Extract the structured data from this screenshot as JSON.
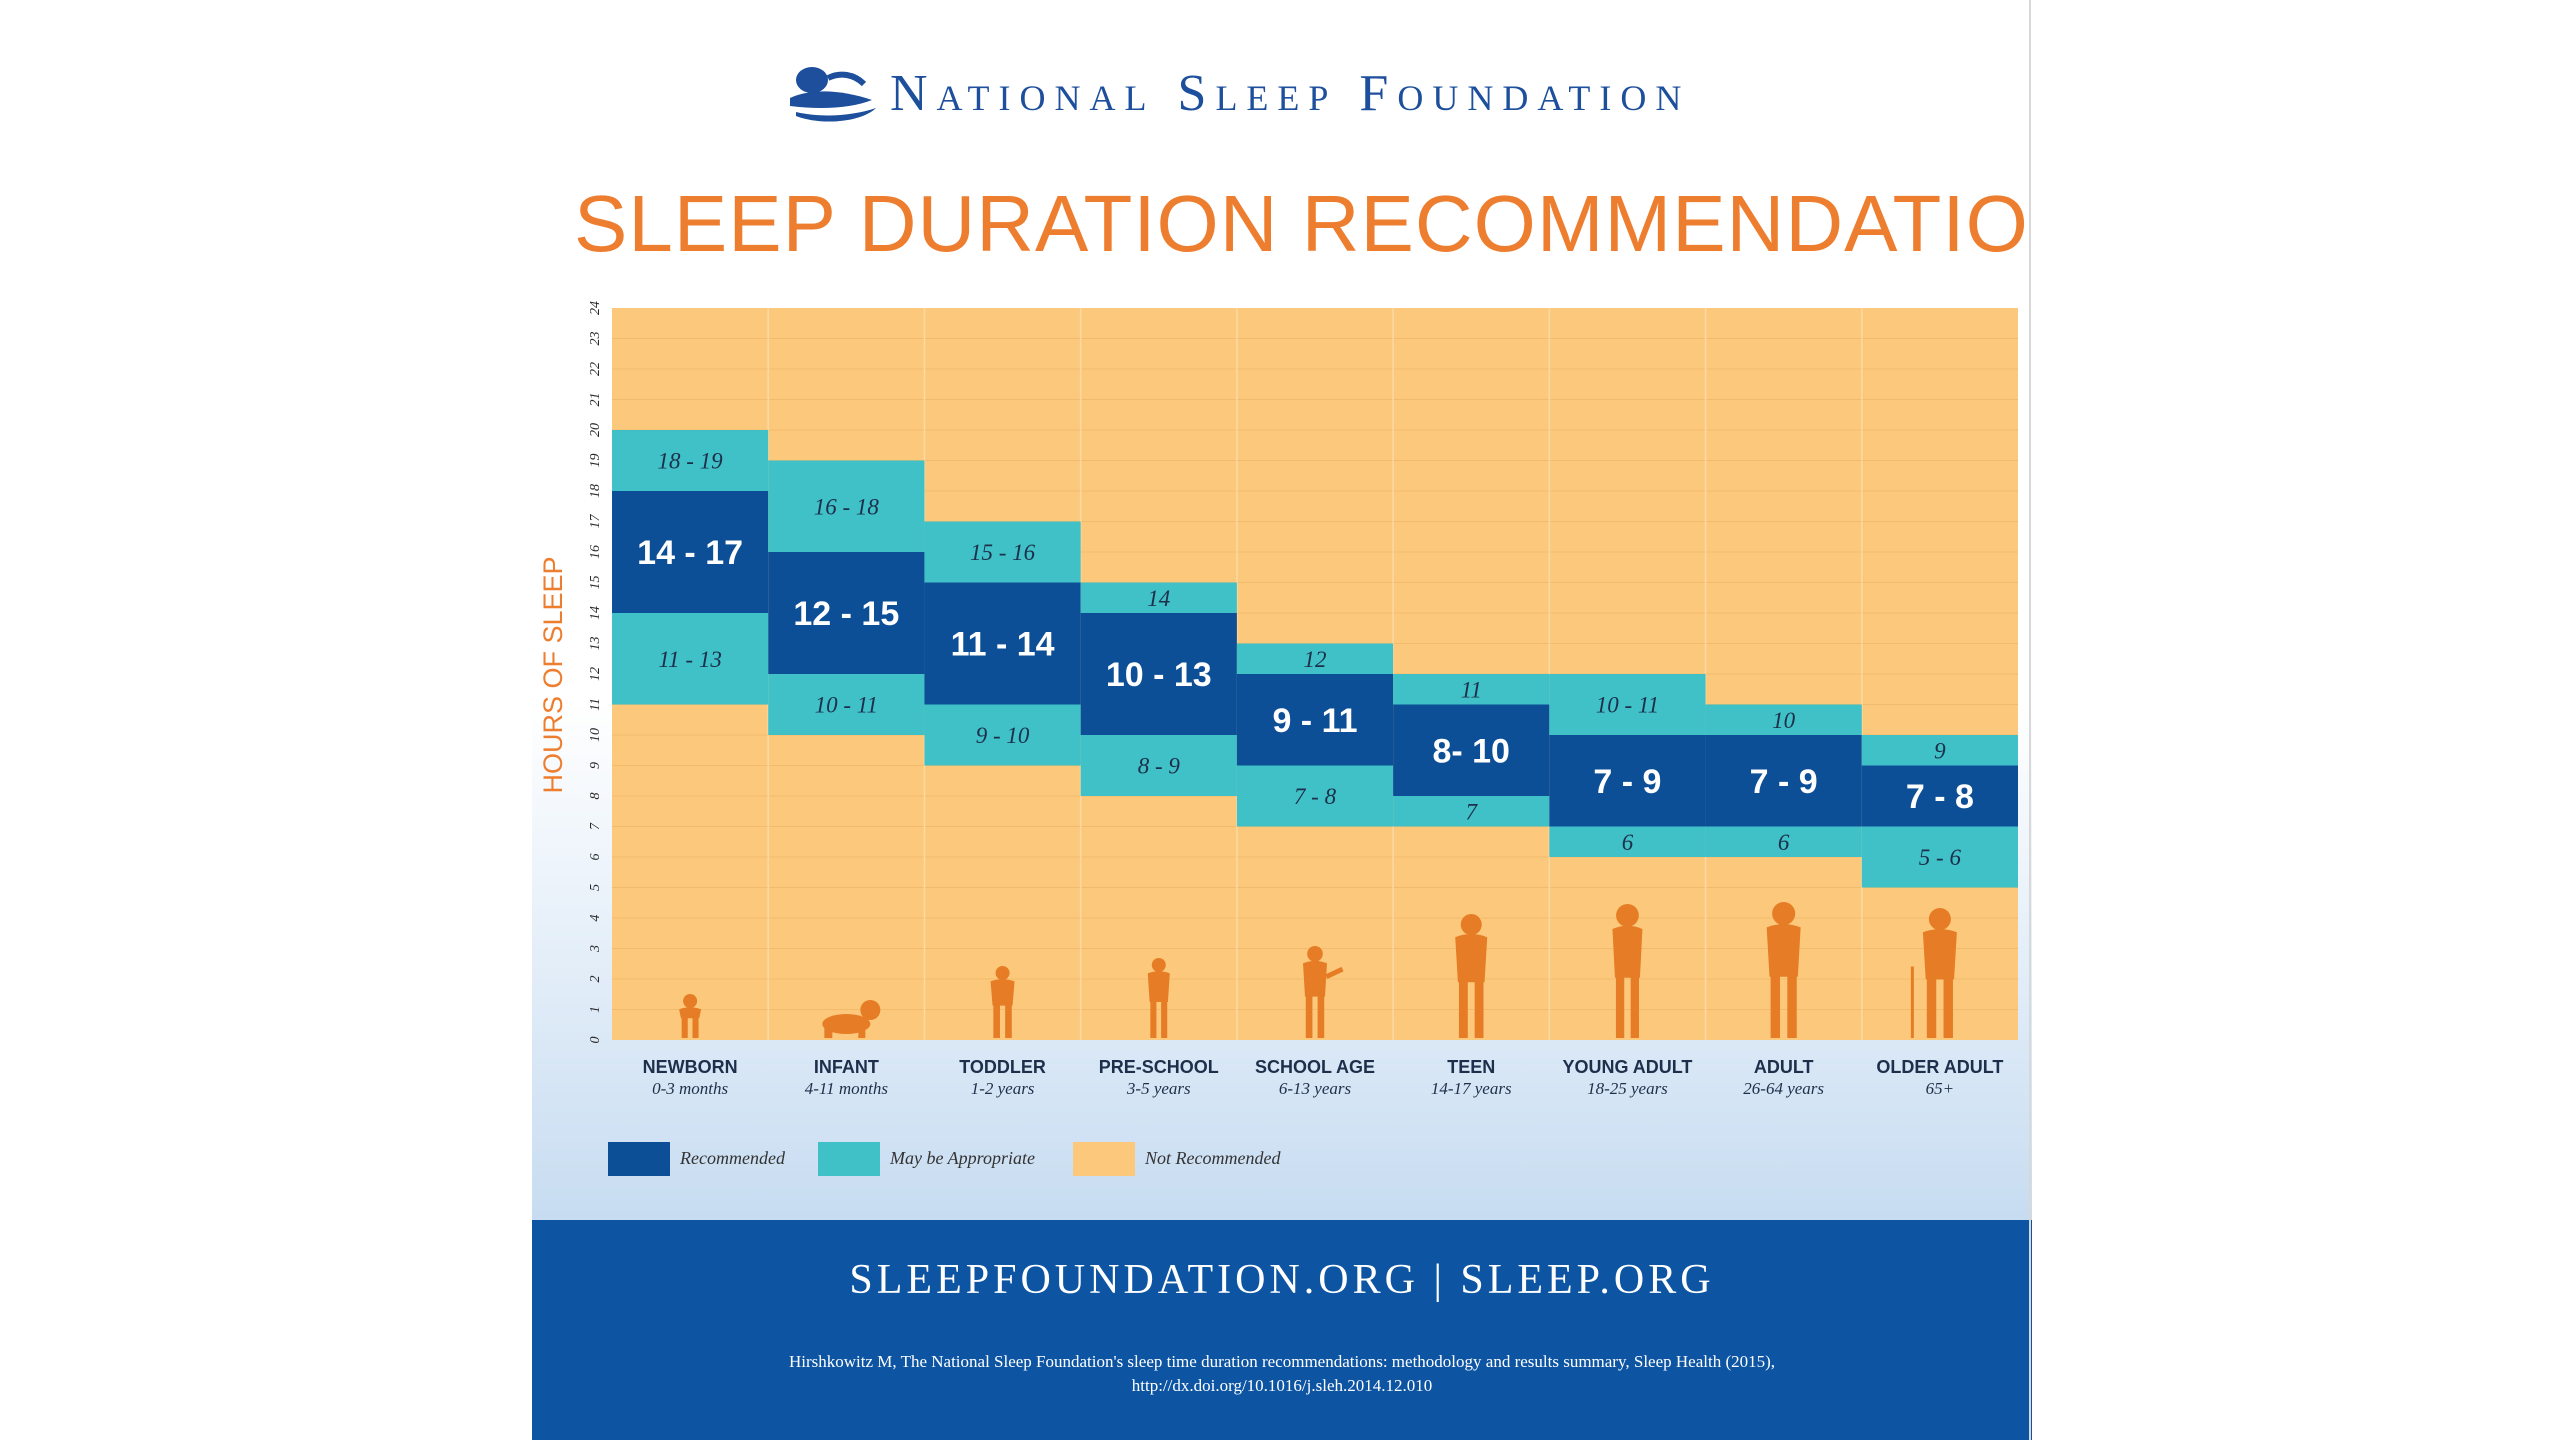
{
  "header": {
    "org_name": "National Sleep Foundation",
    "title": "SLEEP DURATION RECOMMENDATIONS"
  },
  "colors": {
    "recommended": "#0d4f96",
    "may_be_appropriate": "#3fc1c7",
    "not_recommended": "#fcc97c",
    "title_orange": "#ee7e2f",
    "silhouette": "#e67d26",
    "footer_blue": "#0d55a3"
  },
  "chart_data": {
    "type": "range-bar",
    "ylabel": "HOURS OF SLEEP",
    "ylim": [
      0,
      24
    ],
    "y_ticks": [
      0,
      1,
      2,
      3,
      4,
      5,
      6,
      7,
      8,
      9,
      10,
      11,
      12,
      13,
      14,
      15,
      16,
      17,
      18,
      19,
      20,
      21,
      22,
      23,
      24
    ],
    "categories": [
      {
        "name": "NEWBORN",
        "age": "0-3 months",
        "icon": "newborn-silhouette-icon",
        "may_be_low": [
          11,
          14
        ],
        "low_label": "11 - 13",
        "recommended": [
          14,
          18
        ],
        "rec_label": "14 - 17",
        "may_be_high": [
          18,
          20
        ],
        "high_label": "18 - 19"
      },
      {
        "name": "INFANT",
        "age": "4-11 months",
        "icon": "crawling-infant-silhouette-icon",
        "may_be_low": [
          10,
          12
        ],
        "low_label": "10 - 11",
        "recommended": [
          12,
          16
        ],
        "rec_label": "12 - 15",
        "may_be_high": [
          16,
          19
        ],
        "high_label": "16 - 18"
      },
      {
        "name": "TODDLER",
        "age": "1-2 years",
        "icon": "toddler-silhouette-icon",
        "may_be_low": [
          9,
          11
        ],
        "low_label": "9 - 10",
        "recommended": [
          11,
          15
        ],
        "rec_label": "11 - 14",
        "may_be_high": [
          15,
          17
        ],
        "high_label": "15 - 16"
      },
      {
        "name": "PRE-SCHOOL",
        "age": "3-5 years",
        "icon": "preschooler-silhouette-icon",
        "may_be_low": [
          8,
          10
        ],
        "low_label": "8 - 9",
        "recommended": [
          10,
          14
        ],
        "rec_label": "10 - 13",
        "may_be_high": [
          14,
          15
        ],
        "high_label": "14"
      },
      {
        "name": "SCHOOL AGE",
        "age": "6-13 years",
        "icon": "child-playing-silhouette-icon",
        "may_be_low": [
          7,
          9
        ],
        "low_label": "7 - 8",
        "recommended": [
          9,
          12
        ],
        "rec_label": "9 - 11",
        "may_be_high": [
          12,
          13
        ],
        "high_label": "12"
      },
      {
        "name": "TEEN",
        "age": "14-17 years",
        "icon": "teen-silhouette-icon",
        "may_be_low": [
          7,
          8
        ],
        "low_label": "7",
        "recommended": [
          8,
          11
        ],
        "rec_label": "8- 10",
        "may_be_high": [
          11,
          12
        ],
        "high_label": "11"
      },
      {
        "name": "YOUNG ADULT",
        "age": "18-25 years",
        "icon": "young-adult-silhouette-icon",
        "may_be_low": [
          6,
          7
        ],
        "low_label": "6",
        "recommended": [
          7,
          10
        ],
        "rec_label": "7 - 9",
        "may_be_high": [
          10,
          12
        ],
        "high_label": "10 - 11"
      },
      {
        "name": "ADULT",
        "age": "26-64 years",
        "icon": "adult-woman-silhouette-icon",
        "may_be_low": [
          6,
          7
        ],
        "low_label": "6",
        "recommended": [
          7,
          10
        ],
        "rec_label": "7 - 9",
        "may_be_high": [
          10,
          11
        ],
        "high_label": "10"
      },
      {
        "name": "OLDER ADULT",
        "age": "65+",
        "icon": "older-adult-cane-silhouette-icon",
        "may_be_low": [
          5,
          7
        ],
        "low_label": "5 - 6",
        "recommended": [
          7,
          9
        ],
        "rec_label": "7 - 8",
        "may_be_high": [
          9,
          10
        ],
        "high_label": "9"
      }
    ],
    "legend": [
      {
        "label": "Recommended",
        "color": "#0d4f96"
      },
      {
        "label": "May be Appropriate",
        "color": "#3fc1c7"
      },
      {
        "label": "Not Recommended",
        "color": "#fcc97c"
      }
    ],
    "legend_position": "bottom-left",
    "grid": true
  },
  "footer": {
    "urls": "SLEEPFOUNDATION.ORG | SLEEP.ORG",
    "citation_line1": "Hirshkowitz M, The National Sleep Foundation's sleep time duration recommendations: methodology and results summary, Sleep Health (2015),",
    "citation_line2": "http://dx.doi.org/10.1016/j.sleh.2014.12.010"
  }
}
